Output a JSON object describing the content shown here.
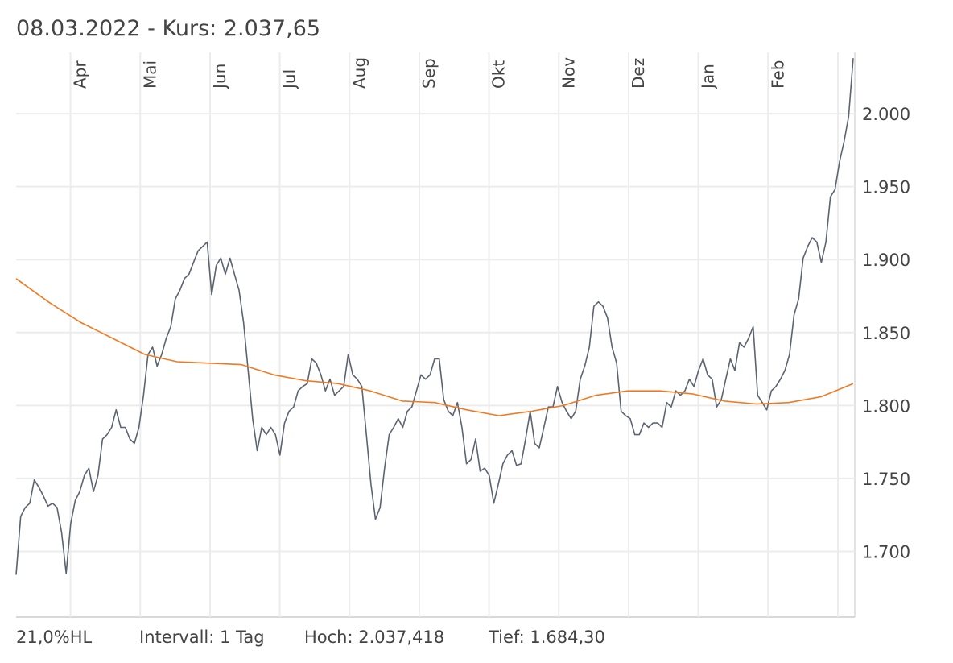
{
  "chart_data": {
    "type": "line",
    "title": "08.03.2022  - Kurs: 2.037,65",
    "footer": [
      "21,0%HL",
      "Intervall: 1 Tag",
      "Hoch: 2.037,418",
      "Tief:  1.684,30"
    ],
    "xticks": [
      "Apr",
      "Mai",
      "Jun",
      "Jul",
      "Aug",
      "Sep",
      "Okt",
      "Nov",
      "Dez",
      "Jan",
      "Feb",
      null
    ],
    "ylim": [
      1655,
      2042
    ],
    "yticks": [
      {
        "value": 1700,
        "label": "1.700"
      },
      {
        "value": 1750,
        "label": "1.750"
      },
      {
        "value": 1800,
        "label": "1.800"
      },
      {
        "value": 1850,
        "label": "1.850"
      },
      {
        "value": 1900,
        "label": "1.900"
      },
      {
        "value": 1950,
        "label": "1.950"
      },
      {
        "value": 2000,
        "label": "2.000"
      }
    ],
    "grid": true,
    "series": [
      {
        "color": "#5b6470",
        "values": [
          1684,
          1724,
          1730,
          1733,
          1749,
          1744,
          1738,
          1731,
          1733,
          1730,
          1713,
          1685,
          1719,
          1735,
          1741,
          1752,
          1757,
          1741,
          1752,
          1777,
          1780,
          1785,
          1797,
          1785,
          1785,
          1777,
          1774,
          1785,
          1807,
          1835,
          1840,
          1827,
          1835,
          1846,
          1854,
          1873,
          1879,
          1887,
          1890,
          1898,
          1906,
          1909,
          1912,
          1876,
          1896,
          1901,
          1890,
          1901,
          1890,
          1879,
          1857,
          1824,
          1791,
          1769,
          1785,
          1780,
          1785,
          1780,
          1766,
          1788,
          1796,
          1799,
          1810,
          1813,
          1815,
          1832,
          1829,
          1821,
          1810,
          1818,
          1807,
          1810,
          1813,
          1835,
          1821,
          1818,
          1813,
          1780,
          1746,
          1722,
          1730,
          1757,
          1780,
          1785,
          1791,
          1785,
          1796,
          1799,
          1810,
          1821,
          1818,
          1821,
          1832,
          1832,
          1804,
          1796,
          1793,
          1802,
          1785,
          1760,
          1763,
          1777,
          1755,
          1757,
          1752,
          1733,
          1746,
          1760,
          1766,
          1769,
          1759,
          1760,
          1777,
          1796,
          1774,
          1771,
          1785,
          1799,
          1799,
          1813,
          1802,
          1796,
          1791,
          1796,
          1818,
          1827,
          1840,
          1868,
          1871,
          1868,
          1860,
          1840,
          1829,
          1796,
          1793,
          1791,
          1780,
          1780,
          1788,
          1785,
          1788,
          1788,
          1785,
          1802,
          1799,
          1810,
          1807,
          1810,
          1818,
          1813,
          1824,
          1832,
          1821,
          1818,
          1799,
          1804,
          1818,
          1832,
          1824,
          1843,
          1840,
          1846,
          1854,
          1807,
          1802,
          1797,
          1810,
          1813,
          1818,
          1824,
          1835,
          1862,
          1873,
          1901,
          1909,
          1915,
          1912,
          1898,
          1912,
          1943,
          1948,
          1967,
          1981,
          1998,
          2038
        ]
      },
      {
        "color": "#f07a22",
        "values": [
          1887,
          1871,
          1857,
          1846,
          1835,
          1830,
          1829,
          1828,
          1821,
          1817,
          1815,
          1810,
          1803,
          1802,
          1797,
          1793,
          1796,
          1800,
          1807,
          1810,
          1810,
          1808,
          1803,
          1801,
          1802,
          1806,
          1815
        ]
      }
    ]
  }
}
